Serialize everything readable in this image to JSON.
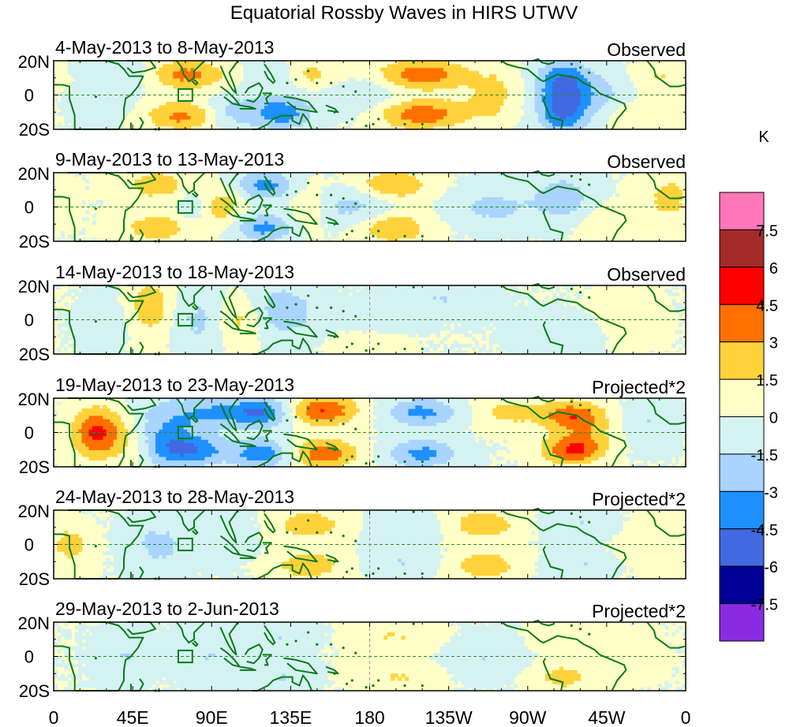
{
  "chart_data": {
    "type": "heatmap",
    "title": "Equatorial Rossby Waves in HIRS UTWV",
    "units_label": "K",
    "y_ticks": [
      "20N",
      "0",
      "20S"
    ],
    "x_ticks": [
      "0",
      "45E",
      "90E",
      "135E",
      "180",
      "135W",
      "90W",
      "45W",
      "0"
    ],
    "x_range_deg_east": [
      0,
      360
    ],
    "y_range_deg": [
      -20,
      20
    ],
    "colorbar": {
      "levels": [
        "7.5",
        "6",
        "4.5",
        "3",
        "1.5",
        "0",
        "-1.5",
        "-3",
        "-4.5",
        "-6",
        "-7.5"
      ],
      "colors_top_to_bottom": [
        "#ff77b8",
        "#a52a2a",
        "#ff0000",
        "#ff7000",
        "#ffd23c",
        "#ffffc8",
        "#d4f2f2",
        "#a8d4ff",
        "#1e90ff",
        "#4169e1",
        "#000096",
        "#8a2be2"
      ]
    },
    "panels": [
      {
        "period": "4-May-2013 to 8-May-2013",
        "kind": "Observed",
        "blobs": [
          {
            "lon": 75,
            "lat": 12,
            "amp": 3.5,
            "sx": 16,
            "sy": 6
          },
          {
            "lon": 75,
            "lat": -12,
            "amp": 3.5,
            "sx": 16,
            "sy": 6
          },
          {
            "lon": 100,
            "lat": -10,
            "amp": -2.5,
            "sx": 12,
            "sy": 7
          },
          {
            "lon": 145,
            "lat": 12,
            "amp": 2,
            "sx": 14,
            "sy": 6
          },
          {
            "lon": 130,
            "lat": -10,
            "amp": -4,
            "sx": 12,
            "sy": 7
          },
          {
            "lon": 125,
            "lat": 12,
            "amp": -2,
            "sx": 10,
            "sy": 6
          },
          {
            "lon": 210,
            "lat": 12,
            "amp": 4,
            "sx": 18,
            "sy": 6
          },
          {
            "lon": 210,
            "lat": -11,
            "amp": 4,
            "sx": 18,
            "sy": 6
          },
          {
            "lon": 250,
            "lat": 0,
            "amp": 2,
            "sx": 10,
            "sy": 10
          },
          {
            "lon": 290,
            "lat": 8,
            "amp": -4.5,
            "sx": 10,
            "sy": 9
          },
          {
            "lon": 290,
            "lat": -10,
            "amp": -4.5,
            "sx": 10,
            "sy": 9
          },
          {
            "lon": 312,
            "lat": 0,
            "amp": -2,
            "sx": 12,
            "sy": 10
          },
          {
            "lon": 40,
            "lat": 12,
            "amp": -1.5,
            "sx": 14,
            "sy": 6
          },
          {
            "lon": 30,
            "lat": -5,
            "amp": -1,
            "sx": 12,
            "sy": 8
          },
          {
            "lon": 175,
            "lat": 0,
            "amp": -1.5,
            "sx": 15,
            "sy": 8
          },
          {
            "lon": 330,
            "lat": -12,
            "amp": 1.5,
            "sx": 14,
            "sy": 6
          },
          {
            "lon": 345,
            "lat": 10,
            "amp": 1.5,
            "sx": 12,
            "sy": 6
          }
        ]
      },
      {
        "period": "9-May-2013 to 13-May-2013",
        "kind": "Observed",
        "blobs": [
          {
            "lon": 60,
            "lat": 13,
            "amp": 2.5,
            "sx": 14,
            "sy": 6
          },
          {
            "lon": 60,
            "lat": -12,
            "amp": 2.5,
            "sx": 14,
            "sy": 6
          },
          {
            "lon": 95,
            "lat": 0,
            "amp": 2.5,
            "sx": 10,
            "sy": 8
          },
          {
            "lon": 120,
            "lat": 13,
            "amp": -3.5,
            "sx": 12,
            "sy": 6
          },
          {
            "lon": 120,
            "lat": -12,
            "amp": -3.5,
            "sx": 12,
            "sy": 6
          },
          {
            "lon": 170,
            "lat": 0,
            "amp": -2,
            "sx": 16,
            "sy": 8
          },
          {
            "lon": 193,
            "lat": 13,
            "amp": 3,
            "sx": 14,
            "sy": 6
          },
          {
            "lon": 193,
            "lat": -12,
            "amp": 3,
            "sx": 14,
            "sy": 6
          },
          {
            "lon": 250,
            "lat": 0,
            "amp": -2,
            "sx": 16,
            "sy": 8
          },
          {
            "lon": 290,
            "lat": 5,
            "amp": -2.5,
            "sx": 12,
            "sy": 10
          },
          {
            "lon": 315,
            "lat": -10,
            "amp": 1.5,
            "sx": 12,
            "sy": 7
          },
          {
            "lon": 350,
            "lat": 5,
            "amp": 2,
            "sx": 10,
            "sy": 10
          },
          {
            "lon": 80,
            "lat": 0,
            "amp": -1.5,
            "sx": 8,
            "sy": 10
          },
          {
            "lon": 145,
            "lat": 0,
            "amp": 1.5,
            "sx": 8,
            "sy": 10
          }
        ]
      },
      {
        "period": "14-May-2013 to 18-May-2013",
        "kind": "Observed",
        "blobs": [
          {
            "lon": 55,
            "lat": 8,
            "amp": 2.5,
            "sx": 9,
            "sy": 12
          },
          {
            "lon": 85,
            "lat": 0,
            "amp": -2,
            "sx": 12,
            "sy": 12
          },
          {
            "lon": 105,
            "lat": 0,
            "amp": 2.5,
            "sx": 10,
            "sy": 10
          },
          {
            "lon": 130,
            "lat": 5,
            "amp": -2.5,
            "sx": 14,
            "sy": 12
          },
          {
            "lon": 185,
            "lat": 0,
            "amp": -1.5,
            "sx": 15,
            "sy": 6
          },
          {
            "lon": 220,
            "lat": 12,
            "amp": -1.5,
            "sx": 18,
            "sy": 6
          },
          {
            "lon": 180,
            "lat": -12,
            "amp": 1,
            "sx": 14,
            "sy": 6
          },
          {
            "lon": 290,
            "lat": -8,
            "amp": -1.2,
            "sx": 18,
            "sy": 8
          },
          {
            "lon": 325,
            "lat": 0,
            "amp": 1.2,
            "sx": 12,
            "sy": 10
          },
          {
            "lon": 30,
            "lat": 0,
            "amp": -1,
            "sx": 10,
            "sy": 10
          }
        ]
      },
      {
        "period": "19-May-2013 to 23-May-2013",
        "kind": "Projected*2",
        "blobs": [
          {
            "lon": 25,
            "lat": 0,
            "amp": 5,
            "sx": 10,
            "sy": 10
          },
          {
            "lon": 65,
            "lat": 0,
            "amp": -3,
            "sx": 14,
            "sy": 14
          },
          {
            "lon": 80,
            "lat": -10,
            "amp": -3.5,
            "sx": 16,
            "sy": 6
          },
          {
            "lon": 95,
            "lat": 12,
            "amp": -3,
            "sx": 16,
            "sy": 6
          },
          {
            "lon": 120,
            "lat": -12,
            "amp": -4,
            "sx": 12,
            "sy": 6
          },
          {
            "lon": 120,
            "lat": 12,
            "amp": -4,
            "sx": 12,
            "sy": 6
          },
          {
            "lon": 153,
            "lat": 13,
            "amp": 4.5,
            "sx": 14,
            "sy": 6
          },
          {
            "lon": 153,
            "lat": -12,
            "amp": 4,
            "sx": 14,
            "sy": 6
          },
          {
            "lon": 210,
            "lat": 12,
            "amp": -3.5,
            "sx": 14,
            "sy": 6
          },
          {
            "lon": 210,
            "lat": -12,
            "amp": -3.5,
            "sx": 14,
            "sy": 6
          },
          {
            "lon": 260,
            "lat": 12,
            "amp": 2,
            "sx": 14,
            "sy": 6
          },
          {
            "lon": 295,
            "lat": 10,
            "amp": 4,
            "sx": 12,
            "sy": 6
          },
          {
            "lon": 295,
            "lat": -10,
            "amp": 4.5,
            "sx": 12,
            "sy": 6
          },
          {
            "lon": 305,
            "lat": 0,
            "amp": 1.5,
            "sx": 10,
            "sy": 8
          },
          {
            "lon": 340,
            "lat": 5,
            "amp": -1.5,
            "sx": 10,
            "sy": 10
          },
          {
            "lon": 45,
            "lat": -8,
            "amp": 1.5,
            "sx": 8,
            "sy": 10
          }
        ]
      },
      {
        "period": "24-May-2013 to 28-May-2013",
        "kind": "Projected*2",
        "blobs": [
          {
            "lon": 10,
            "lat": 0,
            "amp": 2,
            "sx": 8,
            "sy": 8
          },
          {
            "lon": 60,
            "lat": 0,
            "amp": -2,
            "sx": 12,
            "sy": 10
          },
          {
            "lon": 97,
            "lat": 5,
            "amp": -1.2,
            "sx": 12,
            "sy": 10
          },
          {
            "lon": 145,
            "lat": 12,
            "amp": 2.5,
            "sx": 14,
            "sy": 6
          },
          {
            "lon": 145,
            "lat": -12,
            "amp": 2.5,
            "sx": 14,
            "sy": 6
          },
          {
            "lon": 200,
            "lat": 10,
            "amp": -1.5,
            "sx": 14,
            "sy": 6
          },
          {
            "lon": 200,
            "lat": -10,
            "amp": -1.5,
            "sx": 14,
            "sy": 6
          },
          {
            "lon": 245,
            "lat": 12,
            "amp": 2.5,
            "sx": 14,
            "sy": 6
          },
          {
            "lon": 245,
            "lat": -12,
            "amp": 2.5,
            "sx": 14,
            "sy": 6
          },
          {
            "lon": 300,
            "lat": 12,
            "amp": -1.5,
            "sx": 14,
            "sy": 6
          },
          {
            "lon": 300,
            "lat": -12,
            "amp": -1.5,
            "sx": 14,
            "sy": 6
          },
          {
            "lon": 340,
            "lat": 0,
            "amp": 1,
            "sx": 14,
            "sy": 10
          }
        ]
      },
      {
        "period": "29-May-2013 to 2-Jun-2013",
        "kind": "Projected*2",
        "blobs": [
          {
            "lon": 40,
            "lat": 0,
            "amp": -1.5,
            "sx": 10,
            "sy": 10
          },
          {
            "lon": 90,
            "lat": 0,
            "amp": -1.5,
            "sx": 12,
            "sy": 10
          },
          {
            "lon": 130,
            "lat": 12,
            "amp": -1.5,
            "sx": 12,
            "sy": 6
          },
          {
            "lon": 130,
            "lat": -12,
            "amp": -1.5,
            "sx": 12,
            "sy": 6
          },
          {
            "lon": 195,
            "lat": 12,
            "amp": 1.5,
            "sx": 16,
            "sy": 6
          },
          {
            "lon": 195,
            "lat": -12,
            "amp": 1.5,
            "sx": 16,
            "sy": 6
          },
          {
            "lon": 245,
            "lat": 0,
            "amp": -1.5,
            "sx": 14,
            "sy": 8
          },
          {
            "lon": 290,
            "lat": -12,
            "amp": 2,
            "sx": 12,
            "sy": 6
          },
          {
            "lon": 290,
            "lat": 12,
            "amp": 1.2,
            "sx": 12,
            "sy": 6
          },
          {
            "lon": 325,
            "lat": 0,
            "amp": 1.2,
            "sx": 12,
            "sy": 8
          }
        ]
      }
    ]
  }
}
